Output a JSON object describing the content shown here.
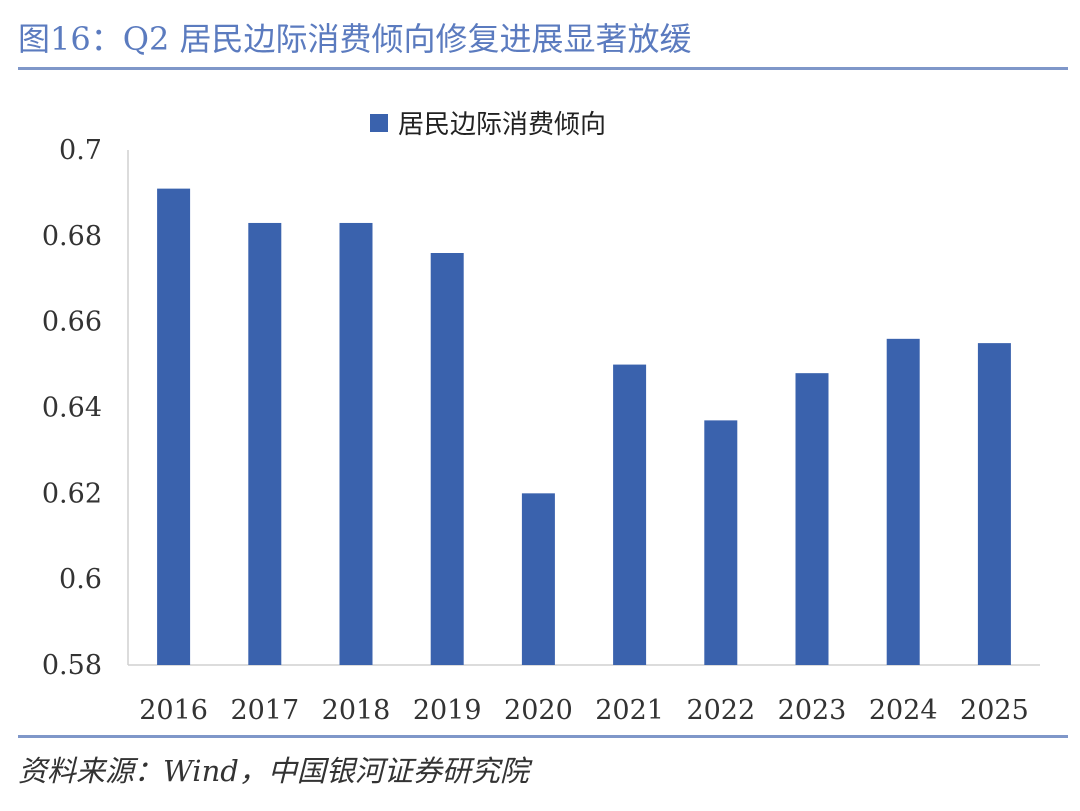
{
  "title": "图16：Q2 居民边际消费倾向修复进展显著放缓",
  "source": "资料来源：Wind，中国银河证券研究院",
  "colors": {
    "bar": "#3a62ad",
    "title": "#5b7bbf",
    "rule": "#7f97c9",
    "axis": "#d0d0d0"
  },
  "chart_data": {
    "type": "bar",
    "categories": [
      "2016",
      "2017",
      "2018",
      "2019",
      "2020",
      "2021",
      "2022",
      "2023",
      "2024",
      "2025"
    ],
    "series": [
      {
        "name": "居民边际消费倾向",
        "values": [
          0.691,
          0.683,
          0.683,
          0.676,
          0.62,
          0.65,
          0.637,
          0.648,
          0.656,
          0.655
        ]
      }
    ],
    "yticks": [
      "0.58",
      "0.6",
      "0.62",
      "0.64",
      "0.66",
      "0.68",
      "0.7"
    ],
    "ylim": [
      0.58,
      0.7
    ],
    "legend_position": "top-center",
    "grid": false
  }
}
